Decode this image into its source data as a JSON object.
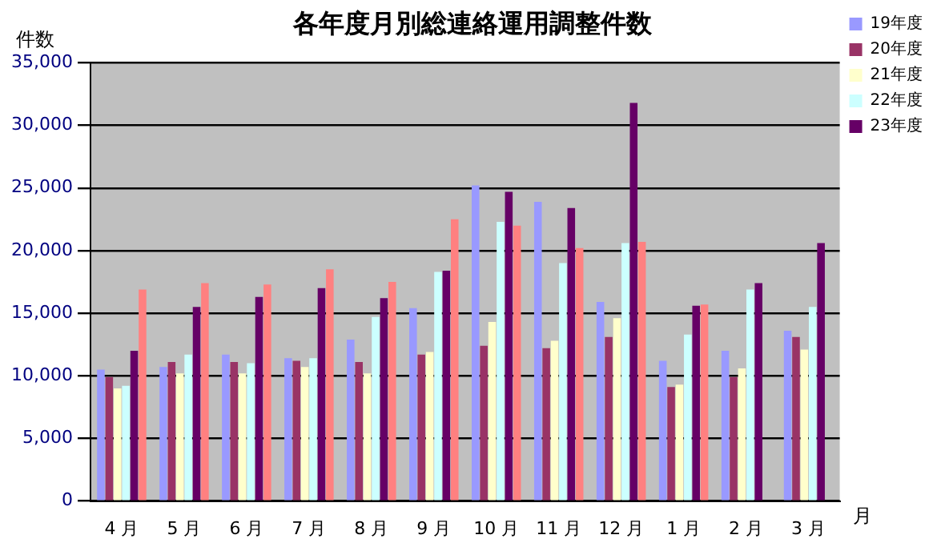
{
  "chart_data": {
    "type": "bar",
    "title": "各年度月別総連絡運用調整件数",
    "ylabel": "件数",
    "xlabel": "月",
    "categories": [
      "4 月",
      "5 月",
      "6 月",
      "7 月",
      "8 月",
      "9 月",
      "10 月",
      "11 月",
      "12 月",
      "1 月",
      "2 月",
      "3 月"
    ],
    "series": [
      {
        "name": "19年度",
        "color": "#9999ff",
        "values": [
          10500,
          10700,
          11700,
          11400,
          12900,
          15400,
          25200,
          23900,
          15900,
          11200,
          12000,
          13600
        ]
      },
      {
        "name": "20年度",
        "color": "#993366",
        "values": [
          9900,
          11100,
          11100,
          11200,
          11100,
          11700,
          12400,
          12200,
          13100,
          9100,
          9900,
          13100
        ]
      },
      {
        "name": "21年度",
        "color": "#ffffcc",
        "values": [
          9000,
          10200,
          10200,
          10700,
          10200,
          11900,
          14300,
          12800,
          14600,
          9300,
          10600,
          12100
        ]
      },
      {
        "name": "22年度",
        "color": "#ccffff",
        "values": [
          9200,
          11700,
          11000,
          11400,
          14700,
          18300,
          22300,
          19000,
          20600,
          13300,
          16900,
          15500
        ]
      },
      {
        "name": "23年度",
        "color": "#660066",
        "values": [
          12000,
          15500,
          16300,
          17000,
          16200,
          18400,
          24700,
          23400,
          31800,
          15600,
          17400,
          20600
        ]
      },
      {
        "color": "#ff8080",
        "values": [
          16900,
          17400,
          17300,
          18500,
          17500,
          22500,
          22000,
          20200,
          20700,
          15700,
          null,
          null
        ]
      }
    ],
    "ylim": [
      0,
      35000
    ],
    "yticks": [
      0,
      {
        "value": 5000,
        "label": "5,000"
      },
      {
        "value": 10000,
        "label": "10,000"
      },
      {
        "value": 15000,
        "label": "15,000"
      },
      {
        "value": 20000,
        "label": "20,000"
      },
      {
        "value": 25000,
        "label": "25,000"
      },
      {
        "value": 30000,
        "label": "30,000"
      },
      {
        "value": 35000,
        "label": "35,000"
      }
    ],
    "grid": "y",
    "legend": "top right"
  }
}
